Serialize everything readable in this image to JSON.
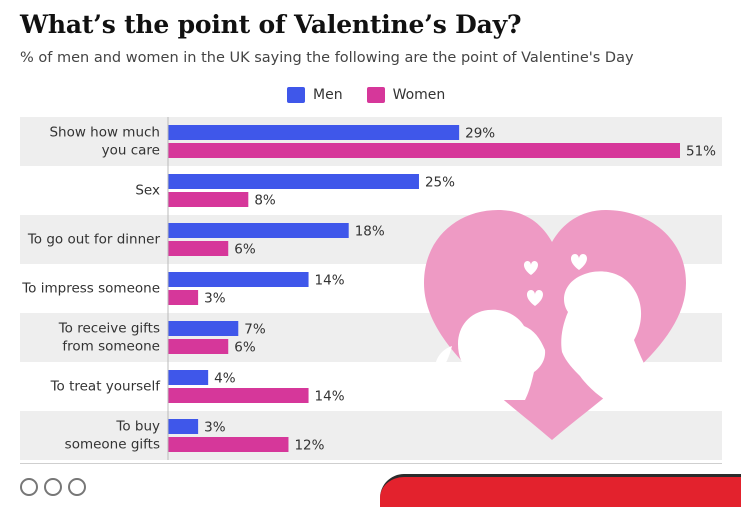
{
  "title": "What’s the point of Valentine’s Day?",
  "subtitle": "% of men and women in the UK saying the following are the point of Valentine's Day",
  "legend": {
    "men": "Men",
    "women": "Women"
  },
  "colors": {
    "men": "#3f57ea",
    "women": "#d6379a",
    "band": "#eeeeee",
    "heart": "#ee9ac4",
    "figures": "#ffffff"
  },
  "chart_data": {
    "type": "bar",
    "orientation": "horizontal",
    "title": "What’s the point of Valentine’s Day?",
    "subtitle": "% of men and women in the UK saying the following are the point of Valentine's Day",
    "categories": [
      [
        "Show how much",
        "you care"
      ],
      [
        "Sex"
      ],
      [
        "To go out for dinner"
      ],
      [
        "To impress someone"
      ],
      [
        "To receive gifts",
        "from someone"
      ],
      [
        "To treat yourself"
      ],
      [
        "To buy",
        "someone gifts"
      ]
    ],
    "series": [
      {
        "name": "Men",
        "values": [
          29,
          25,
          18,
          14,
          7,
          4,
          3
        ]
      },
      {
        "name": "Women",
        "values": [
          51,
          8,
          6,
          3,
          6,
          14,
          12
        ]
      }
    ],
    "unit": "%",
    "xlim": [
      0,
      51
    ],
    "legend": "top-center"
  }
}
